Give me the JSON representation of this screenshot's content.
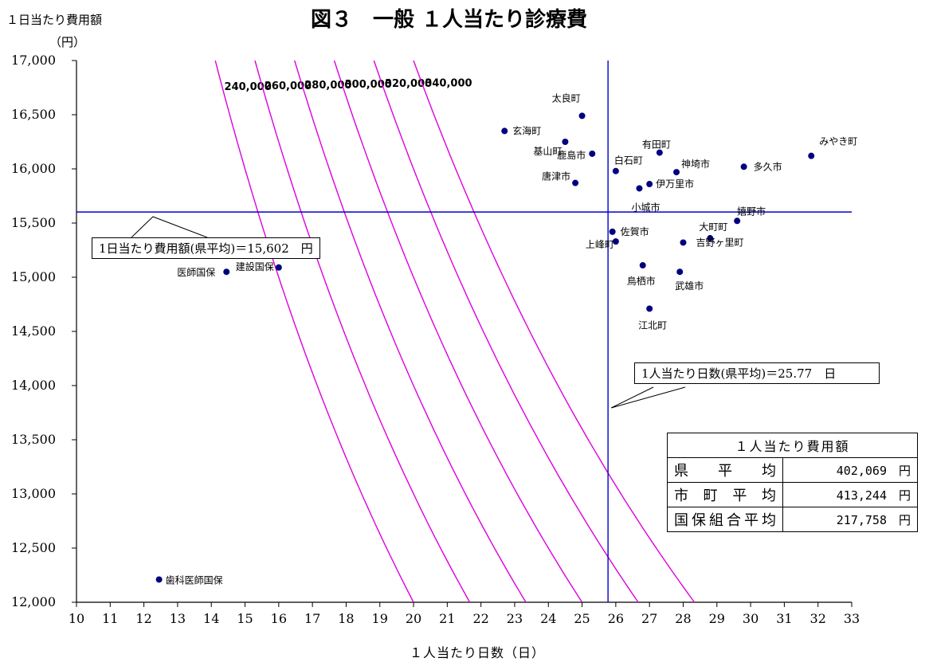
{
  "title": "図３　一般 １人当たり診療費",
  "y_axis_label_line1": "１日当たり費用額",
  "y_axis_label_line2": "（円）",
  "x_axis_label": "１人当たり日数（日）",
  "callout_y": "1日当たり費用額(県平均)＝15,602　円",
  "callout_x": "1人当たり日数(県平均)＝25.77　日",
  "summary_table": {
    "header": "１人当たり費用額",
    "rows": [
      {
        "label_chars": [
          "県",
          "平",
          "均"
        ],
        "value": "402,069　円"
      },
      {
        "label_chars": [
          "市",
          "町",
          "平",
          "均"
        ],
        "value": "413,244　円"
      },
      {
        "label_chars": [
          "国",
          "保",
          "組",
          "合",
          "平",
          "均"
        ],
        "value": "217,758　円"
      }
    ]
  },
  "colors": {
    "points": "#00007f",
    "reference_lines": "#0000cc",
    "iso_curves": "#dd00dd"
  },
  "chart_data": {
    "type": "scatter",
    "xlim": [
      10,
      33
    ],
    "ylim": [
      12000,
      17000
    ],
    "x_ticks": [
      "10",
      "11",
      "12",
      "13",
      "14",
      "15",
      "16",
      "17",
      "18",
      "19",
      "20",
      "21",
      "22",
      "23",
      "24",
      "25",
      "26",
      "27",
      "28",
      "29",
      "30",
      "31",
      "32",
      "33"
    ],
    "y_ticks": [
      "12,000",
      "12,500",
      "13,000",
      "13,500",
      "14,000",
      "14,500",
      "15,000",
      "15,500",
      "16,000",
      "16,500",
      "17,000"
    ],
    "y_tick_values": [
      12000,
      12500,
      13000,
      13500,
      14000,
      14500,
      15000,
      15500,
      16000,
      16500,
      17000
    ],
    "reference_x": 25.77,
    "reference_y": 15602,
    "iso_curves": [
      {
        "label": "240,000",
        "value": 240000
      },
      {
        "label": "260,000",
        "value": 260000
      },
      {
        "label": "280,000",
        "value": 280000
      },
      {
        "label": "300,000",
        "value": 300000
      },
      {
        "label": "320,000",
        "value": 320000
      },
      {
        "label": "340,000",
        "value": 340000
      }
    ],
    "points": [
      {
        "name": "太良町",
        "x": 25.0,
        "y": 16490
      },
      {
        "name": "玄海町",
        "x": 22.7,
        "y": 16350
      },
      {
        "name": "基山町",
        "x": 24.5,
        "y": 16250
      },
      {
        "name": "鹿島市",
        "x": 25.3,
        "y": 16140
      },
      {
        "name": "有田町",
        "x": 27.3,
        "y": 16150
      },
      {
        "name": "白石町",
        "x": 26.0,
        "y": 15980
      },
      {
        "name": "神埼市",
        "x": 27.8,
        "y": 15970
      },
      {
        "name": "多久市",
        "x": 29.8,
        "y": 16020
      },
      {
        "name": "みやき町",
        "x": 31.8,
        "y": 16120
      },
      {
        "name": "唐津市",
        "x": 24.8,
        "y": 15870
      },
      {
        "name": "伊万里市",
        "x": 27.0,
        "y": 15860
      },
      {
        "name": "小城市",
        "x": 26.7,
        "y": 15820
      },
      {
        "name": "嬉野市",
        "x": 29.6,
        "y": 15520
      },
      {
        "name": "大町町",
        "x": 28.8,
        "y": 15360
      },
      {
        "name": "吉野ヶ里町",
        "x": 28.0,
        "y": 15320
      },
      {
        "name": "佐賀市",
        "x": 25.9,
        "y": 15420
      },
      {
        "name": "上峰町",
        "x": 26.0,
        "y": 15330
      },
      {
        "name": "鳥栖市",
        "x": 26.8,
        "y": 15110
      },
      {
        "name": "武雄市",
        "x": 27.9,
        "y": 15050
      },
      {
        "name": "江北町",
        "x": 27.0,
        "y": 14710
      },
      {
        "name": "医師国保",
        "x": 14.45,
        "y": 15050
      },
      {
        "name": "建設国保",
        "x": 16.0,
        "y": 15090
      },
      {
        "name": "歯科医師国保",
        "x": 12.45,
        "y": 12210
      }
    ]
  }
}
